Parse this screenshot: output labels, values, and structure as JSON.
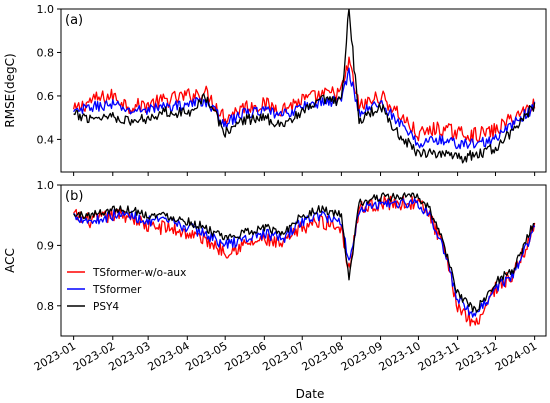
{
  "chart_data": [
    {
      "type": "line",
      "panel_label": "(a)",
      "ylabel": "RMSE(degC)",
      "xlabel": "",
      "xlim": [
        "2022-12-22",
        "2024-01-10"
      ],
      "ylim": [
        0.25,
        1.0
      ],
      "yticks": [
        0.4,
        0.6,
        0.8,
        1.0
      ],
      "ytick_labels": [
        "0.4",
        "0.6",
        "0.8",
        "1.0"
      ],
      "grid": false,
      "series": [
        {
          "name": "TSformer-w/o-aux",
          "color": "#ff0000",
          "x": [
            "2023-01-01",
            "2023-01-15",
            "2023-02-01",
            "2023-02-15",
            "2023-03-01",
            "2023-03-15",
            "2023-04-01",
            "2023-04-15",
            "2023-05-01",
            "2023-05-15",
            "2023-06-01",
            "2023-06-15",
            "2023-07-01",
            "2023-07-15",
            "2023-08-01",
            "2023-08-07",
            "2023-08-15",
            "2023-09-01",
            "2023-09-15",
            "2023-10-01",
            "2023-10-15",
            "2023-11-01",
            "2023-11-15",
            "2023-12-01",
            "2023-12-15",
            "2024-01-01"
          ],
          "y": [
            0.53,
            0.58,
            0.6,
            0.55,
            0.56,
            0.58,
            0.6,
            0.62,
            0.5,
            0.55,
            0.56,
            0.54,
            0.58,
            0.6,
            0.62,
            0.76,
            0.55,
            0.6,
            0.52,
            0.42,
            0.45,
            0.43,
            0.42,
            0.44,
            0.5,
            0.56
          ]
        },
        {
          "name": "TSformer",
          "color": "#0000ff",
          "x": [
            "2023-01-01",
            "2023-01-15",
            "2023-02-01",
            "2023-02-15",
            "2023-03-01",
            "2023-03-15",
            "2023-04-01",
            "2023-04-15",
            "2023-05-01",
            "2023-05-15",
            "2023-06-01",
            "2023-06-15",
            "2023-07-01",
            "2023-07-15",
            "2023-08-01",
            "2023-08-07",
            "2023-08-15",
            "2023-09-01",
            "2023-09-15",
            "2023-10-01",
            "2023-10-15",
            "2023-11-01",
            "2023-11-15",
            "2023-12-01",
            "2023-12-15",
            "2024-01-01"
          ],
          "y": [
            0.52,
            0.55,
            0.56,
            0.53,
            0.54,
            0.55,
            0.56,
            0.58,
            0.47,
            0.52,
            0.53,
            0.51,
            0.55,
            0.57,
            0.58,
            0.72,
            0.52,
            0.57,
            0.48,
            0.38,
            0.4,
            0.38,
            0.38,
            0.4,
            0.47,
            0.55
          ]
        },
        {
          "name": "PSY4",
          "color": "#000000",
          "x": [
            "2023-01-01",
            "2023-01-15",
            "2023-02-01",
            "2023-02-15",
            "2023-03-01",
            "2023-03-15",
            "2023-04-01",
            "2023-04-15",
            "2023-05-01",
            "2023-05-15",
            "2023-06-01",
            "2023-06-15",
            "2023-07-01",
            "2023-07-15",
            "2023-08-01",
            "2023-08-07",
            "2023-08-15",
            "2023-09-01",
            "2023-09-15",
            "2023-10-01",
            "2023-10-15",
            "2023-11-01",
            "2023-11-15",
            "2023-12-01",
            "2023-12-15",
            "2024-01-01"
          ],
          "y": [
            0.51,
            0.5,
            0.51,
            0.48,
            0.5,
            0.53,
            0.52,
            0.6,
            0.43,
            0.49,
            0.5,
            0.47,
            0.52,
            0.58,
            0.57,
            1.0,
            0.48,
            0.56,
            0.42,
            0.34,
            0.34,
            0.31,
            0.33,
            0.36,
            0.44,
            0.56
          ]
        }
      ]
    },
    {
      "type": "line",
      "panel_label": "(b)",
      "ylabel": "ACC",
      "xlabel": "Date",
      "xlim": [
        "2022-12-22",
        "2024-01-10"
      ],
      "ylim": [
        0.75,
        1.0
      ],
      "yticks": [
        0.8,
        0.9,
        1.0
      ],
      "ytick_labels": [
        "0.8",
        "0.9",
        "1.0"
      ],
      "xticks": [
        "2023-01-01",
        "2023-02-01",
        "2023-03-01",
        "2023-04-01",
        "2023-05-01",
        "2023-06-01",
        "2023-07-01",
        "2023-08-01",
        "2023-09-01",
        "2023-10-01",
        "2023-11-01",
        "2023-12-01",
        "2024-01-01"
      ],
      "xtick_labels": [
        "2023-01",
        "2023-02",
        "2023-03",
        "2023-04",
        "2023-05",
        "2023-06",
        "2023-07",
        "2023-08",
        "2023-09",
        "2023-10",
        "2023-11",
        "2023-12",
        "2024-01"
      ],
      "grid": false,
      "legend": "lower-left",
      "series": [
        {
          "name": "TSformer-w/o-aux",
          "color": "#ff0000",
          "x": [
            "2023-01-01",
            "2023-01-15",
            "2023-02-01",
            "2023-02-15",
            "2023-03-01",
            "2023-03-15",
            "2023-04-01",
            "2023-04-15",
            "2023-05-01",
            "2023-05-15",
            "2023-06-01",
            "2023-06-15",
            "2023-07-01",
            "2023-07-15",
            "2023-08-01",
            "2023-08-07",
            "2023-08-15",
            "2023-09-01",
            "2023-09-15",
            "2023-10-01",
            "2023-10-10",
            "2023-10-20",
            "2023-11-01",
            "2023-11-15",
            "2023-12-01",
            "2023-12-15",
            "2024-01-01"
          ],
          "y": [
            0.95,
            0.94,
            0.95,
            0.95,
            0.93,
            0.93,
            0.92,
            0.91,
            0.89,
            0.9,
            0.91,
            0.9,
            0.93,
            0.94,
            0.93,
            0.86,
            0.96,
            0.97,
            0.97,
            0.97,
            0.95,
            0.9,
            0.8,
            0.77,
            0.83,
            0.85,
            0.93
          ]
        },
        {
          "name": "TSformer",
          "color": "#0000ff",
          "x": [
            "2023-01-01",
            "2023-01-15",
            "2023-02-01",
            "2023-02-15",
            "2023-03-01",
            "2023-03-15",
            "2023-04-01",
            "2023-04-15",
            "2023-05-01",
            "2023-05-15",
            "2023-06-01",
            "2023-06-15",
            "2023-07-01",
            "2023-07-15",
            "2023-08-01",
            "2023-08-07",
            "2023-08-15",
            "2023-09-01",
            "2023-09-15",
            "2023-10-01",
            "2023-10-10",
            "2023-10-20",
            "2023-11-01",
            "2023-11-15",
            "2023-12-01",
            "2023-12-15",
            "2024-01-01"
          ],
          "y": [
            0.95,
            0.94,
            0.95,
            0.95,
            0.94,
            0.94,
            0.93,
            0.92,
            0.9,
            0.91,
            0.92,
            0.91,
            0.94,
            0.95,
            0.94,
            0.87,
            0.96,
            0.97,
            0.97,
            0.97,
            0.95,
            0.9,
            0.81,
            0.78,
            0.83,
            0.85,
            0.93
          ]
        },
        {
          "name": "PSY4",
          "color": "#000000",
          "x": [
            "2023-01-01",
            "2023-01-15",
            "2023-02-01",
            "2023-02-15",
            "2023-03-01",
            "2023-03-15",
            "2023-04-01",
            "2023-04-15",
            "2023-05-01",
            "2023-05-15",
            "2023-06-01",
            "2023-06-15",
            "2023-07-01",
            "2023-07-15",
            "2023-08-01",
            "2023-08-07",
            "2023-08-15",
            "2023-09-01",
            "2023-09-15",
            "2023-10-01",
            "2023-10-10",
            "2023-10-20",
            "2023-11-01",
            "2023-11-15",
            "2023-12-01",
            "2023-12-15",
            "2024-01-01"
          ],
          "y": [
            0.95,
            0.95,
            0.96,
            0.96,
            0.95,
            0.95,
            0.94,
            0.93,
            0.91,
            0.92,
            0.93,
            0.92,
            0.95,
            0.96,
            0.95,
            0.84,
            0.97,
            0.98,
            0.98,
            0.98,
            0.96,
            0.91,
            0.82,
            0.79,
            0.84,
            0.86,
            0.94
          ]
        }
      ]
    }
  ]
}
